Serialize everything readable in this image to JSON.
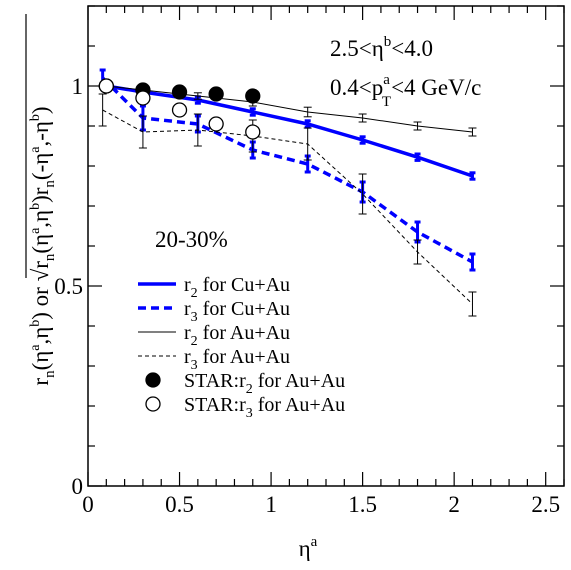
{
  "chart_data": {
    "type": "line",
    "xlabel_base": "η",
    "xlabel_sup": "a",
    "xlim": [
      0,
      2.6
    ],
    "ylim": [
      0,
      1.2
    ],
    "xticks": [
      0,
      0.5,
      1,
      1.5,
      2,
      2.5
    ],
    "xtick_labels": [
      "0",
      "0.5",
      "1",
      "1.5",
      "2",
      "2.5"
    ],
    "yticks": [
      0,
      0.5,
      1
    ],
    "ytick_labels": [
      "0",
      "0.5",
      "1"
    ],
    "ylabel": {
      "left": "r",
      "left_sub": "n",
      "left_args": "(η",
      "left_args_sup1": "a",
      "left_mid": ",η",
      "left_args_sup2": "b",
      "left_close": ") or ",
      "sqrt_r1": "r",
      "sqrt_r1_sub": "n",
      "sqrt_args1": "(η",
      "sqrt_args1_sup1": "a",
      "sqrt_args1_mid": ",η",
      "sqrt_args1_sup2": "b",
      "sqrt_args1_close": ")r",
      "sqrt_r2_sub": "n",
      "sqrt_args2": "(-η",
      "sqrt_args2_sup1": "a",
      "sqrt_args2_mid": ",-η",
      "sqrt_args2_sup2": "b",
      "sqrt_args2_close": ")"
    },
    "annotations": {
      "eta_range": {
        "pre": "2.5<η",
        "sup": "b",
        "post": "<4.0"
      },
      "pt_range": {
        "pre": "0.4<p",
        "sup": "a",
        "sub": "T",
        "post": "<4 GeV/c"
      },
      "centrality": "20-30%"
    },
    "series": [
      {
        "name": "r2 for Cu+Au",
        "label_base": "r",
        "label_sub": "2",
        "label_rest": " for Cu+Au",
        "style": "thick-solid",
        "color": "#0000ff",
        "x": [
          0.1,
          0.3,
          0.6,
          0.9,
          1.2,
          1.5,
          1.8,
          2.1
        ],
        "y": [
          1.0,
          0.985,
          0.965,
          0.935,
          0.905,
          0.865,
          0.822,
          0.775
        ],
        "err": [
          0.005,
          0.005,
          0.008,
          0.008,
          0.008,
          0.008,
          0.008,
          0.008
        ]
      },
      {
        "name": "r3 for Cu+Au",
        "label_base": "r",
        "label_sub": "3",
        "label_rest": " for Cu+Au",
        "style": "thick-dashed",
        "color": "#0000ff",
        "x": [
          0.08,
          0.3,
          0.6,
          0.9,
          1.2,
          1.5,
          1.8,
          2.1
        ],
        "y": [
          1.02,
          0.92,
          0.905,
          0.84,
          0.805,
          0.735,
          0.635,
          0.56
        ],
        "err": [
          0.02,
          0.03,
          0.02,
          0.02,
          0.02,
          0.025,
          0.025,
          0.02
        ]
      },
      {
        "name": "r2 for Au+Au",
        "label_base": "r",
        "label_sub": "2",
        "label_rest": " for Au+Au",
        "style": "thin-solid",
        "color": "#000000",
        "x": [
          0.1,
          0.3,
          0.6,
          0.9,
          1.2,
          1.5,
          1.8,
          2.1
        ],
        "y": [
          1.0,
          0.99,
          0.975,
          0.96,
          0.935,
          0.92,
          0.9,
          0.885
        ],
        "err": [
          0.005,
          0.005,
          0.008,
          0.01,
          0.012,
          0.01,
          0.01,
          0.01
        ]
      },
      {
        "name": "r3 for Au+Au",
        "label_base": "r",
        "label_sub": "3",
        "label_rest": " for Au+Au",
        "style": "thin-dashed",
        "color": "#000000",
        "x": [
          0.08,
          0.3,
          0.6,
          0.9,
          1.2,
          1.5,
          1.8,
          2.1
        ],
        "y": [
          0.94,
          0.885,
          0.89,
          0.875,
          0.855,
          0.73,
          0.585,
          0.455
        ],
        "err": [
          0.04,
          0.04,
          0.04,
          0.04,
          0.04,
          0.05,
          0.03,
          0.03
        ]
      },
      {
        "name": "STAR:r2 for Au+Au",
        "label_base": "STAR:r",
        "label_sub": "2",
        "label_rest": " for Au+Au",
        "style": "filled-circle",
        "color": "#000000",
        "x": [
          0.1,
          0.3,
          0.5,
          0.7,
          0.9
        ],
        "y": [
          1.0,
          0.99,
          0.985,
          0.98,
          0.975
        ]
      },
      {
        "name": "STAR:r3 for Au+Au",
        "label_base": "STAR:r",
        "label_sub": "3",
        "label_rest": " for Au+Au",
        "style": "open-circle",
        "color": "#000000",
        "x": [
          0.1,
          0.3,
          0.5,
          0.7,
          0.9
        ],
        "y": [
          1.0,
          0.97,
          0.94,
          0.905,
          0.885
        ]
      }
    ],
    "grid": false,
    "legend": "left"
  }
}
